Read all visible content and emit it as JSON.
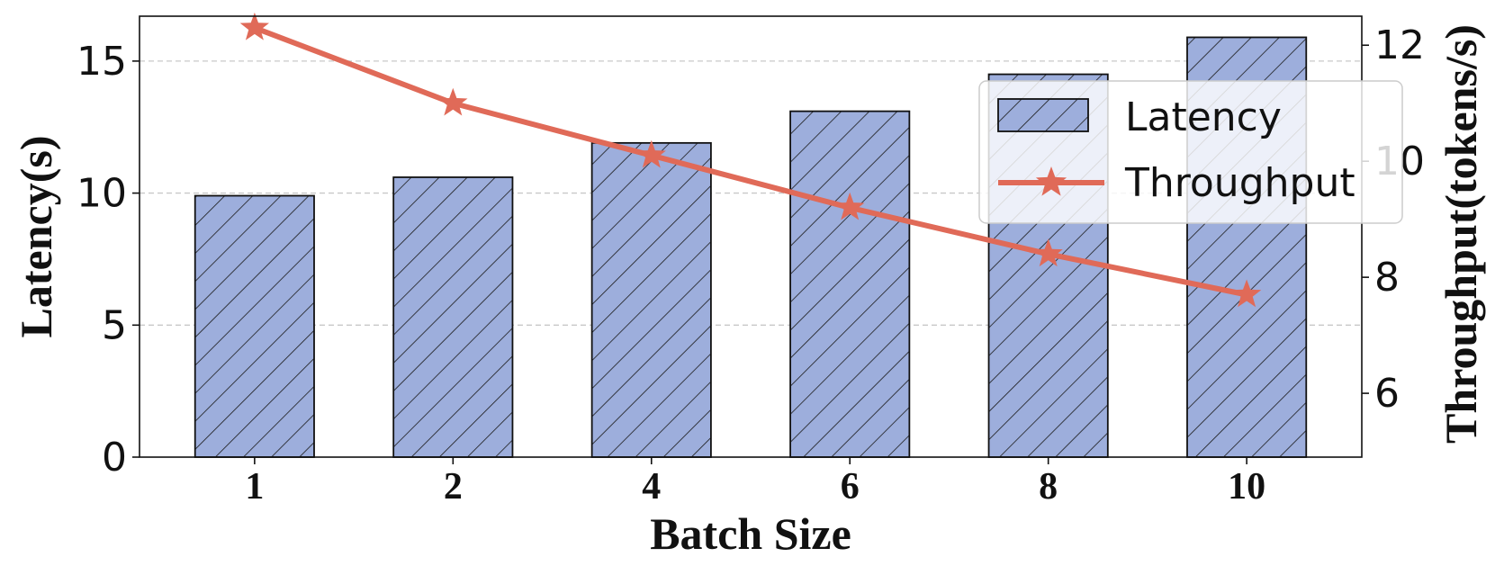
{
  "chart_data": {
    "type": "bar",
    "categories": [
      "1",
      "2",
      "4",
      "6",
      "8",
      "10"
    ],
    "xlabel": "Batch Size",
    "series": [
      {
        "name": "Latency",
        "type": "bar",
        "axis": "left",
        "values": [
          9.9,
          10.6,
          11.9,
          13.1,
          14.5,
          15.9
        ],
        "color": "#9DAEDC",
        "hatch": "/"
      },
      {
        "name": "Throughput",
        "type": "line",
        "axis": "right",
        "marker": "star",
        "values": [
          12.3,
          11.0,
          10.1,
          9.2,
          8.4,
          7.7
        ],
        "color": "#E06A58"
      }
    ],
    "y_left": {
      "label": "Latency(s)",
      "ylim": [
        0,
        16.7
      ],
      "ticks": [
        0,
        5,
        10,
        15
      ]
    },
    "y_right": {
      "label": "Throughput(tokens/s)",
      "ylim": [
        4.9,
        12.5
      ],
      "ticks": [
        6,
        8,
        10,
        12
      ]
    },
    "grid": "horizontal dashed (left-axis ticks)",
    "legend_position": "top-right"
  }
}
